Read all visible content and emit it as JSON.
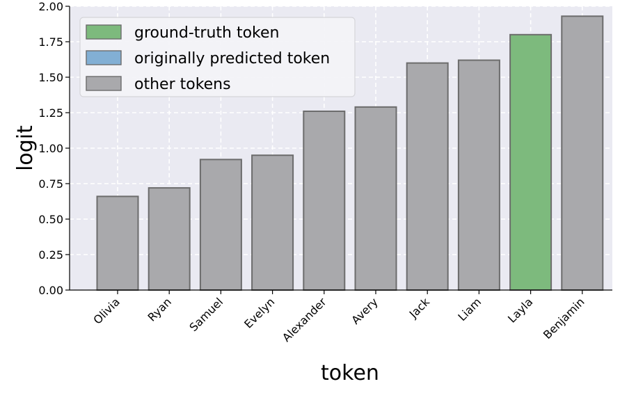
{
  "chart_data": {
    "type": "bar",
    "title": "",
    "xlabel": "token",
    "ylabel": "logit",
    "ylim": [
      0,
      2.0
    ],
    "yticks": [
      "0.00",
      "0.25",
      "0.50",
      "0.75",
      "1.00",
      "1.25",
      "1.50",
      "1.75",
      "2.00"
    ],
    "grid": true,
    "legend_position": "top-left",
    "categories": [
      "Olivia",
      "Ryan",
      "Samuel",
      "Evelyn",
      "Alexander",
      "Avery",
      "Jack",
      "Liam",
      "Layla",
      "Benjamin"
    ],
    "values": [
      0.66,
      0.72,
      0.92,
      0.95,
      1.26,
      1.29,
      1.6,
      1.62,
      1.8,
      1.93
    ],
    "bar_roles": [
      "other",
      "other",
      "other",
      "other",
      "other",
      "other",
      "other",
      "other",
      "ground-truth",
      "other"
    ],
    "legend": [
      {
        "role": "ground-truth",
        "label": "ground-truth token",
        "color": "#7dba7d"
      },
      {
        "role": "original",
        "label": "originally predicted token",
        "color": "#82afd4"
      },
      {
        "role": "other",
        "label": "other tokens",
        "color": "#a9a9ac"
      }
    ],
    "colors": {
      "plot_background": "#eaeaf2",
      "grid": "#ffffff",
      "bar_edge": "#6c6c6c"
    }
  }
}
